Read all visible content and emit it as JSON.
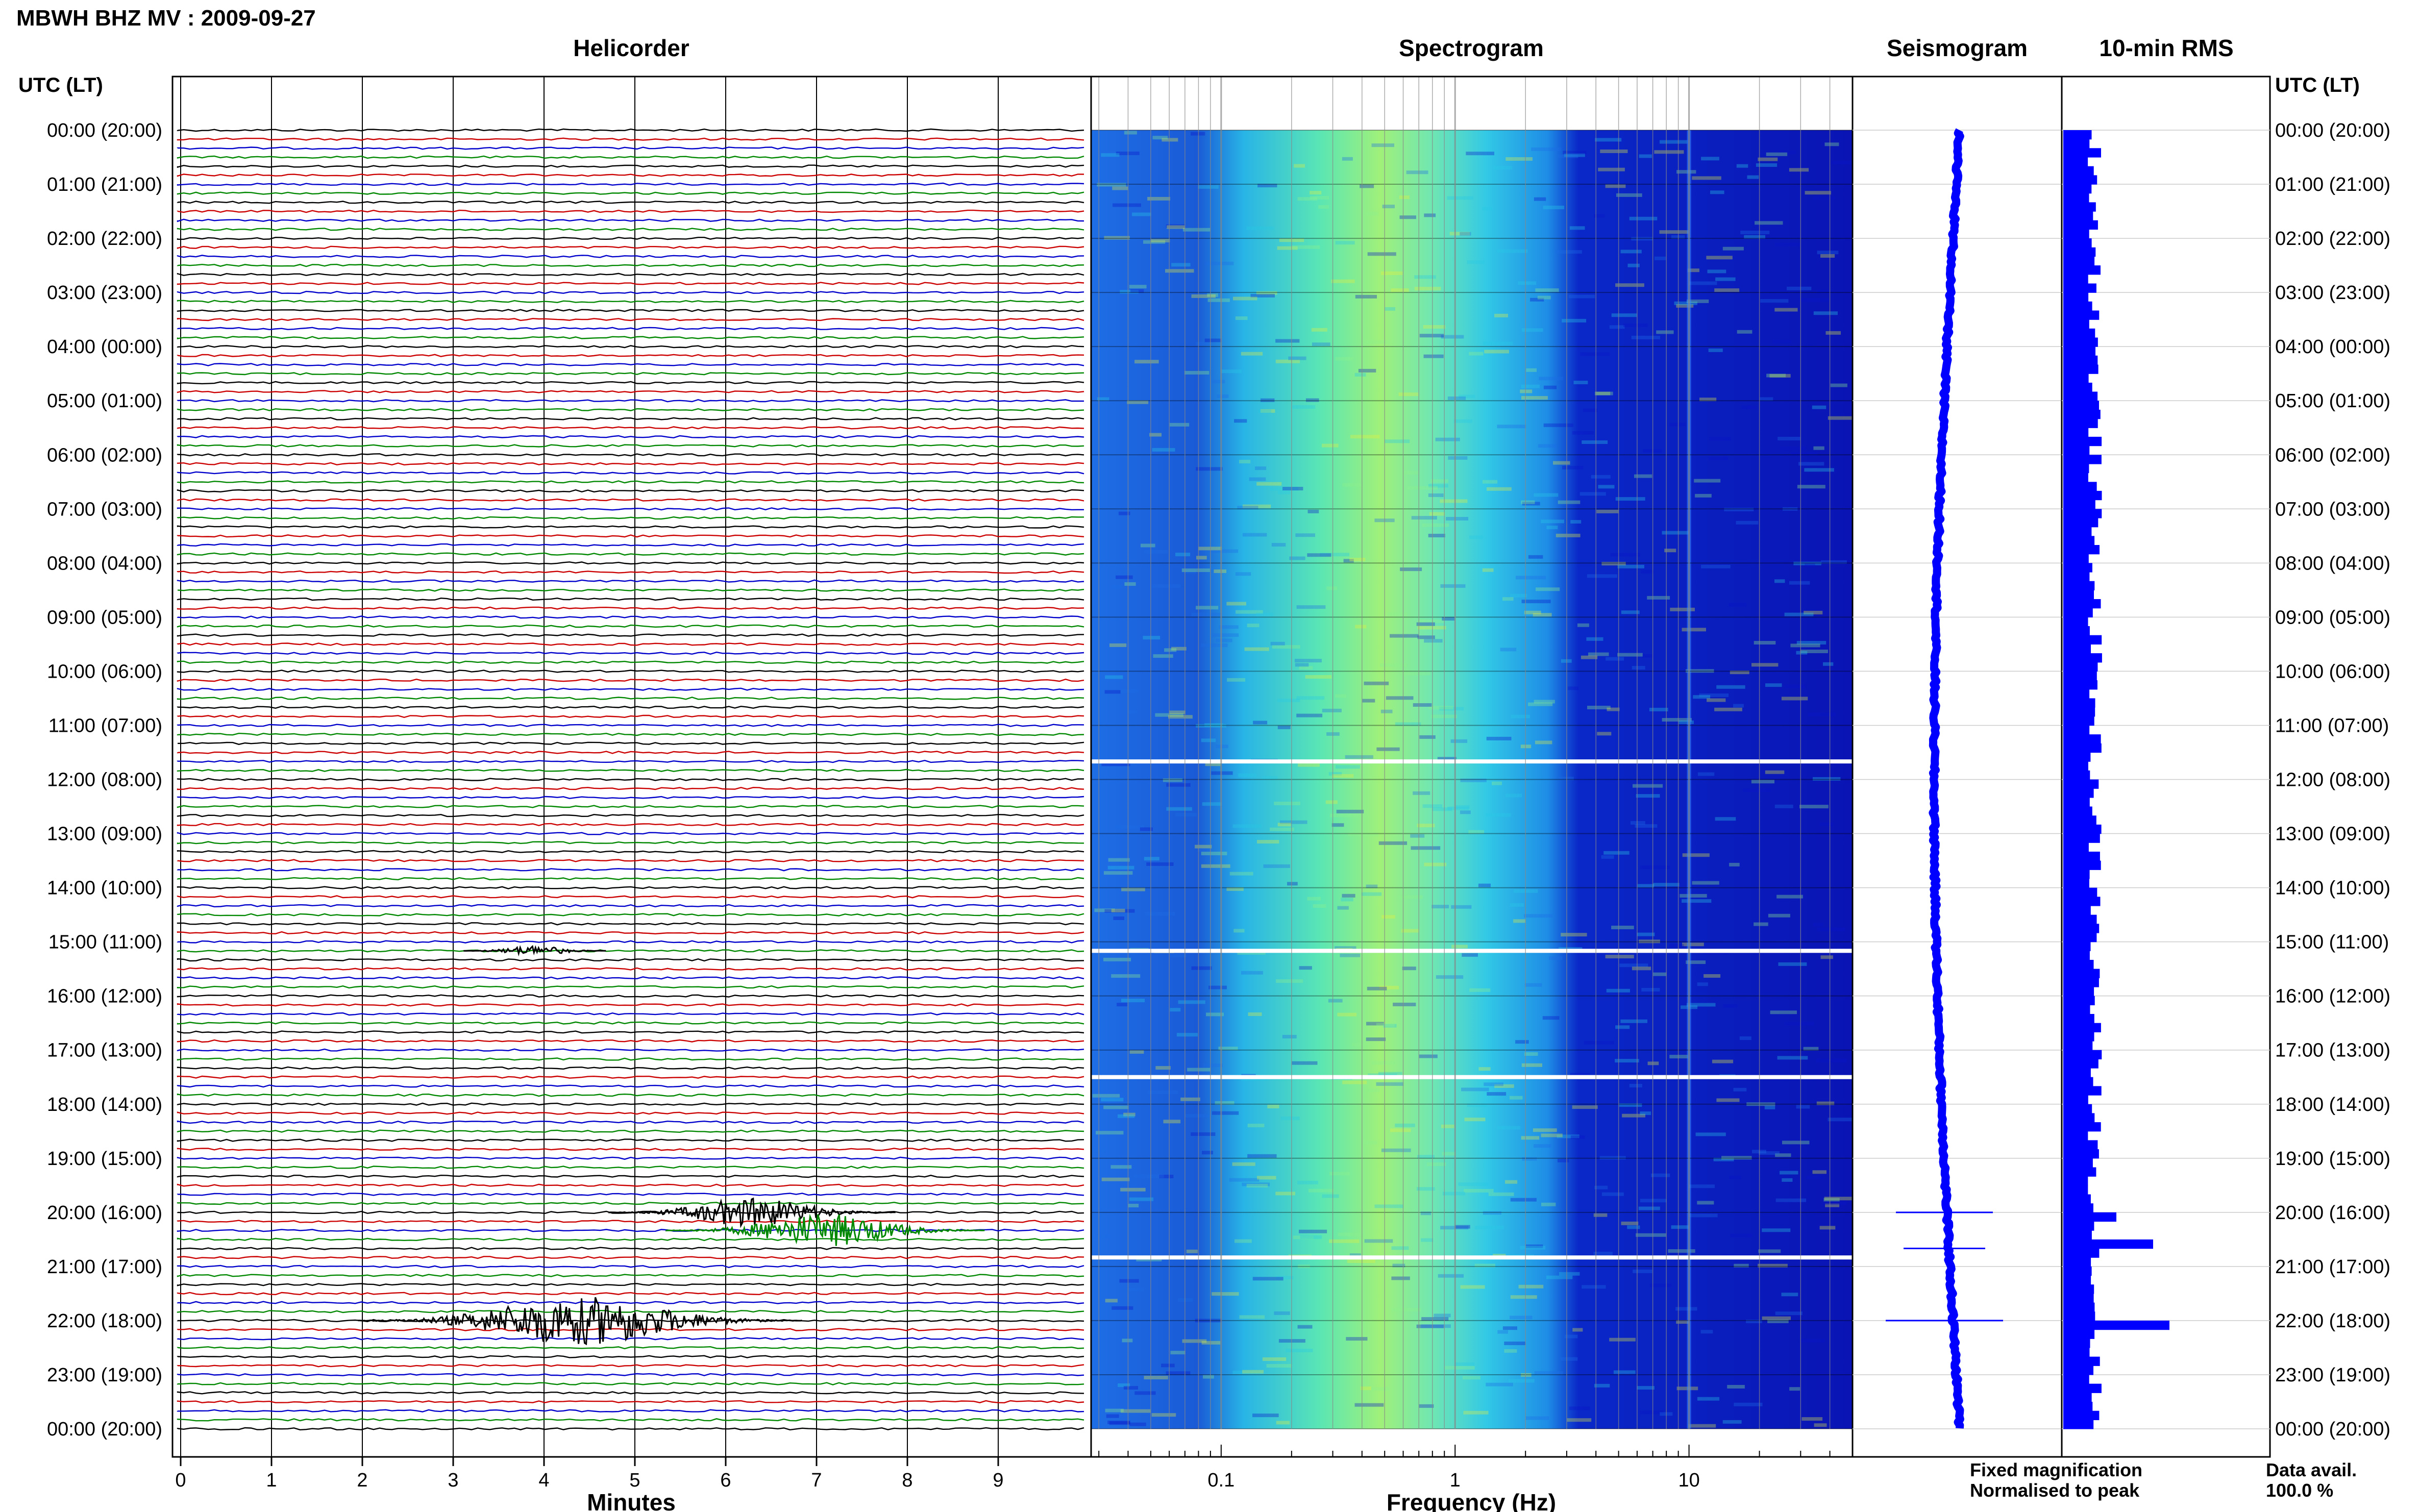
{
  "figure": {
    "station_title": "MBWH BHZ MV : 2009-09-27",
    "left_axis_label": "UTC (LT)",
    "right_axis_label": "UTC (LT)",
    "hour_labels": [
      "00:00 (20:00)",
      "01:00 (21:00)",
      "02:00 (22:00)",
      "03:00 (23:00)",
      "04:00 (00:00)",
      "05:00 (01:00)",
      "06:00 (02:00)",
      "07:00 (03:00)",
      "08:00 (04:00)",
      "09:00 (05:00)",
      "10:00 (06:00)",
      "11:00 (07:00)",
      "12:00 (08:00)",
      "13:00 (09:00)",
      "14:00 (10:00)",
      "15:00 (11:00)",
      "16:00 (12:00)",
      "17:00 (13:00)",
      "18:00 (14:00)",
      "19:00 (15:00)",
      "20:00 (16:00)",
      "21:00 (17:00)",
      "22:00 (18:00)",
      "23:00 (19:00)",
      "00:00 (20:00)"
    ],
    "legend": {
      "fixed_label": "Fixed magnification",
      "fixed_color": "#0000ff",
      "normalised_label": "Normalised to peak",
      "normalised_color": "#ff0000"
    },
    "data_avail_label": "Data avail.",
    "data_avail_value": "100.0 %"
  },
  "chart_data": [
    {
      "type": "line",
      "title": "Helicorder",
      "xlabel": "Minutes",
      "x_ticks": [
        "0",
        "1",
        "2",
        "3",
        "4",
        "5",
        "6",
        "7",
        "8",
        "9"
      ],
      "xlim": [
        0,
        10
      ],
      "rows_per_hour": 6,
      "trace_colors": [
        "#000000",
        "#cc0000",
        "#0000cc",
        "#008800"
      ],
      "events": [
        {
          "time_utc": "15:10",
          "minute": 3.9,
          "amplitude": 1.2,
          "color": "#000000"
        },
        {
          "time_utc": "20:00",
          "minute": 6.3,
          "amplitude": 3.5,
          "color": "#000000"
        },
        {
          "time_utc": "20:20",
          "minute": 7.1,
          "amplitude": 4.0,
          "color": "#008800"
        },
        {
          "time_utc": "22:00",
          "minute": 4.4,
          "amplitude": 6.0,
          "color": "#000000"
        }
      ]
    },
    {
      "type": "heatmap",
      "title": "Spectrogram",
      "xlabel": "Frequency (Hz)",
      "x_scale": "log",
      "x_ticks": [
        "0.1",
        "1",
        "10"
      ],
      "xlim": [
        0.0278,
        50
      ],
      "colormap": [
        "#0a14c8",
        "#1e6ee6",
        "#28c8e6",
        "#8cf08c",
        "#e6f03c"
      ],
      "gaps_utc": [
        "11:40",
        "15:10",
        "17:30",
        "20:50"
      ]
    },
    {
      "type": "line",
      "title": "Seismogram",
      "series_color": "#0000ff",
      "spikes_utc": [
        "20:00",
        "20:40",
        "22:00"
      ]
    },
    {
      "type": "bar",
      "title": "10-min RMS",
      "bar_color": "#0000ff",
      "orientation": "horizontal",
      "baseline_range": [
        0.6,
        0.95
      ],
      "spikes": [
        {
          "time_utc": "20:00",
          "value": 1.3
        },
        {
          "time_utc": "20:30",
          "value": 2.2
        },
        {
          "time_utc": "22:00",
          "value": 2.6
        }
      ]
    }
  ]
}
